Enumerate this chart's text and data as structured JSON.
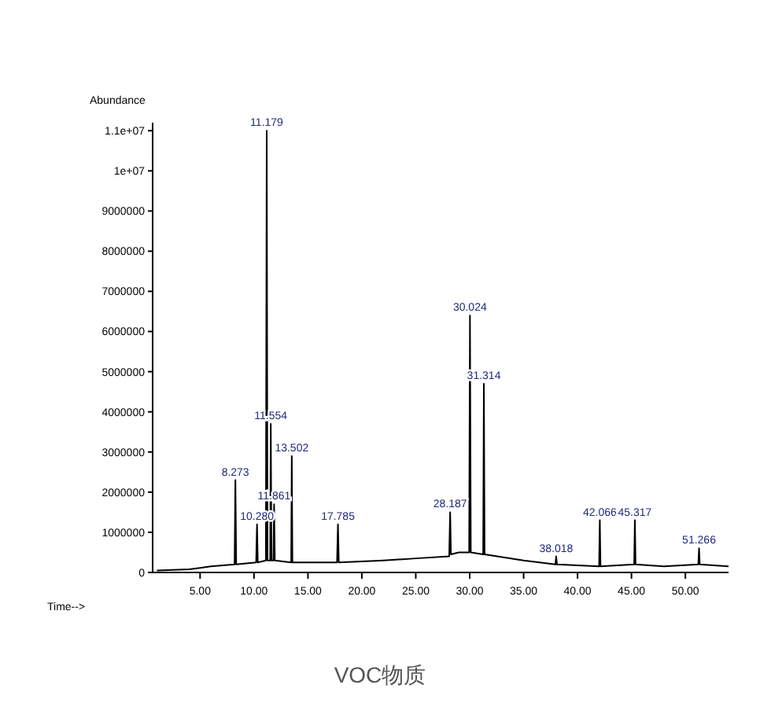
{
  "chart_data": {
    "type": "line",
    "xlabel": "Time-->",
    "ylabel": "Abundance",
    "annotations": [
      {
        "text": "11.179",
        "x": 11.179,
        "y": 11000000
      },
      {
        "text": "30.024",
        "x": 30.024,
        "y": 6400000
      },
      {
        "text": "31.314",
        "x": 31.314,
        "y": 4700000
      },
      {
        "text": "11.554",
        "x": 11.554,
        "y": 3700000
      },
      {
        "text": "13.502",
        "x": 13.502,
        "y": 2900000
      },
      {
        "text": "8.273",
        "x": 8.273,
        "y": 2300000
      },
      {
        "text": "11.861",
        "x": 11.861,
        "y": 1700000
      },
      {
        "text": "10.280",
        "x": 10.28,
        "y": 1200000
      },
      {
        "text": "17.785",
        "x": 17.785,
        "y": 1200000
      },
      {
        "text": "28.187",
        "x": 28.187,
        "y": 1500000
      },
      {
        "text": "42.066",
        "x": 42.066,
        "y": 1300000
      },
      {
        "text": "45.317",
        "x": 45.317,
        "y": 1300000
      },
      {
        "text": "38.018",
        "x": 38.018,
        "y": 400000
      },
      {
        "text": "51.266",
        "x": 51.266,
        "y": 600000
      },
      "VOC物质"
    ],
    "x": [
      1,
      4,
      6,
      8.2,
      8.273,
      8.35,
      10.2,
      10.28,
      10.35,
      11.1,
      11.179,
      11.25,
      11.5,
      11.554,
      11.62,
      11.8,
      11.861,
      11.93,
      13.45,
      13.502,
      13.56,
      17.7,
      17.785,
      17.86,
      22,
      25,
      28.1,
      28.187,
      28.26,
      29,
      29.95,
      30.024,
      30.1,
      31.25,
      31.314,
      31.38,
      35,
      37.95,
      38.018,
      38.09,
      42,
      42.066,
      42.13,
      45.25,
      45.317,
      45.38,
      48,
      51.2,
      51.266,
      51.33,
      54
    ],
    "values": [
      50000,
      80000,
      150000,
      200000,
      2300000,
      200000,
      250000,
      1200000,
      250000,
      300000,
      11000000,
      300000,
      300000,
      3700000,
      300000,
      300000,
      1700000,
      300000,
      250000,
      2900000,
      250000,
      250000,
      1200000,
      250000,
      300000,
      350000,
      400000,
      1500000,
      450000,
      500000,
      500000,
      6400000,
      500000,
      450000,
      4700000,
      450000,
      300000,
      200000,
      400000,
      200000,
      150000,
      1300000,
      150000,
      200000,
      1300000,
      200000,
      150000,
      200000,
      600000,
      200000,
      150000
    ],
    "color": "#000000",
    "xlim": [
      0.6,
      54
    ],
    "xticks": [
      {
        "value": 5,
        "label": "5.00"
      },
      {
        "value": 10,
        "label": "10.00"
      },
      {
        "value": 15,
        "label": "15.00"
      },
      {
        "value": 20,
        "label": "20.00"
      },
      {
        "value": 25,
        "label": "25.00"
      },
      {
        "value": 30,
        "label": "30.00"
      },
      {
        "value": 35,
        "label": "35.00"
      },
      {
        "value": 40,
        "label": "40.00"
      },
      {
        "value": 45,
        "label": "45.00"
      },
      {
        "value": 50,
        "label": "50.00"
      }
    ],
    "ylim": [
      0,
      11200000
    ],
    "yticks": [
      0,
      1000000,
      2000000,
      3000000,
      4000000,
      5000000,
      6000000,
      7000000,
      8000000,
      9000000,
      {
        "value": 10000000,
        "label": "1e+07"
      },
      {
        "value": 11000000,
        "label": "1.1e+07"
      }
    ],
    "marker": "none",
    "line_style": "solid"
  }
}
